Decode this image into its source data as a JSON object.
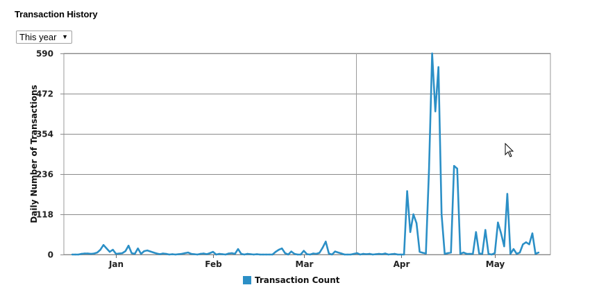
{
  "header": {
    "title": "Transaction History"
  },
  "range_select": {
    "value": "This year",
    "arrow_glyph": "▼"
  },
  "chart_data": {
    "type": "line",
    "ylabel": "Daily Number of Transactions",
    "xlabel": "",
    "ylim": [
      0,
      590
    ],
    "yticks": [
      0,
      118,
      236,
      354,
      472,
      590
    ],
    "grid": true,
    "legend_position": "bottom",
    "months": [
      "Jan",
      "Feb",
      "Mar",
      "Apr",
      "May"
    ],
    "series": [
      {
        "name": "Transaction Count",
        "color": "#2b8fc6",
        "x_start": "Jan 1",
        "values": [
          0,
          0,
          0,
          2,
          3,
          3,
          2,
          3,
          6,
          14,
          28,
          18,
          8,
          14,
          2,
          3,
          4,
          10,
          26,
          4,
          2,
          18,
          2,
          10,
          12,
          9,
          6,
          3,
          1,
          3,
          2,
          0,
          1,
          0,
          1,
          2,
          4,
          6,
          2,
          1,
          0,
          2,
          3,
          1,
          4,
          8,
          0,
          2,
          1,
          0,
          3,
          4,
          2,
          16,
          2,
          0,
          2,
          1,
          0,
          1,
          0,
          0,
          0,
          0,
          0,
          8,
          14,
          18,
          4,
          0,
          9,
          2,
          0,
          0,
          11,
          1,
          0,
          3,
          2,
          5,
          20,
          38,
          3,
          0,
          9,
          6,
          3,
          0,
          0,
          0,
          2,
          4,
          0,
          2,
          1,
          2,
          0,
          1,
          2,
          1,
          3,
          0,
          1,
          2,
          0,
          0,
          0,
          186,
          66,
          118,
          92,
          8,
          5,
          3,
          250,
          590,
          420,
          550,
          118,
          2,
          4,
          6,
          260,
          252,
          2,
          6,
          2,
          2,
          2,
          66,
          3,
          2,
          72,
          2,
          0,
          4,
          94,
          62,
          24,
          178,
          2,
          16,
          2,
          6,
          30,
          36,
          30,
          62,
          2,
          6
        ]
      }
    ],
    "reference_line": {
      "label": "Apr 1"
    }
  }
}
